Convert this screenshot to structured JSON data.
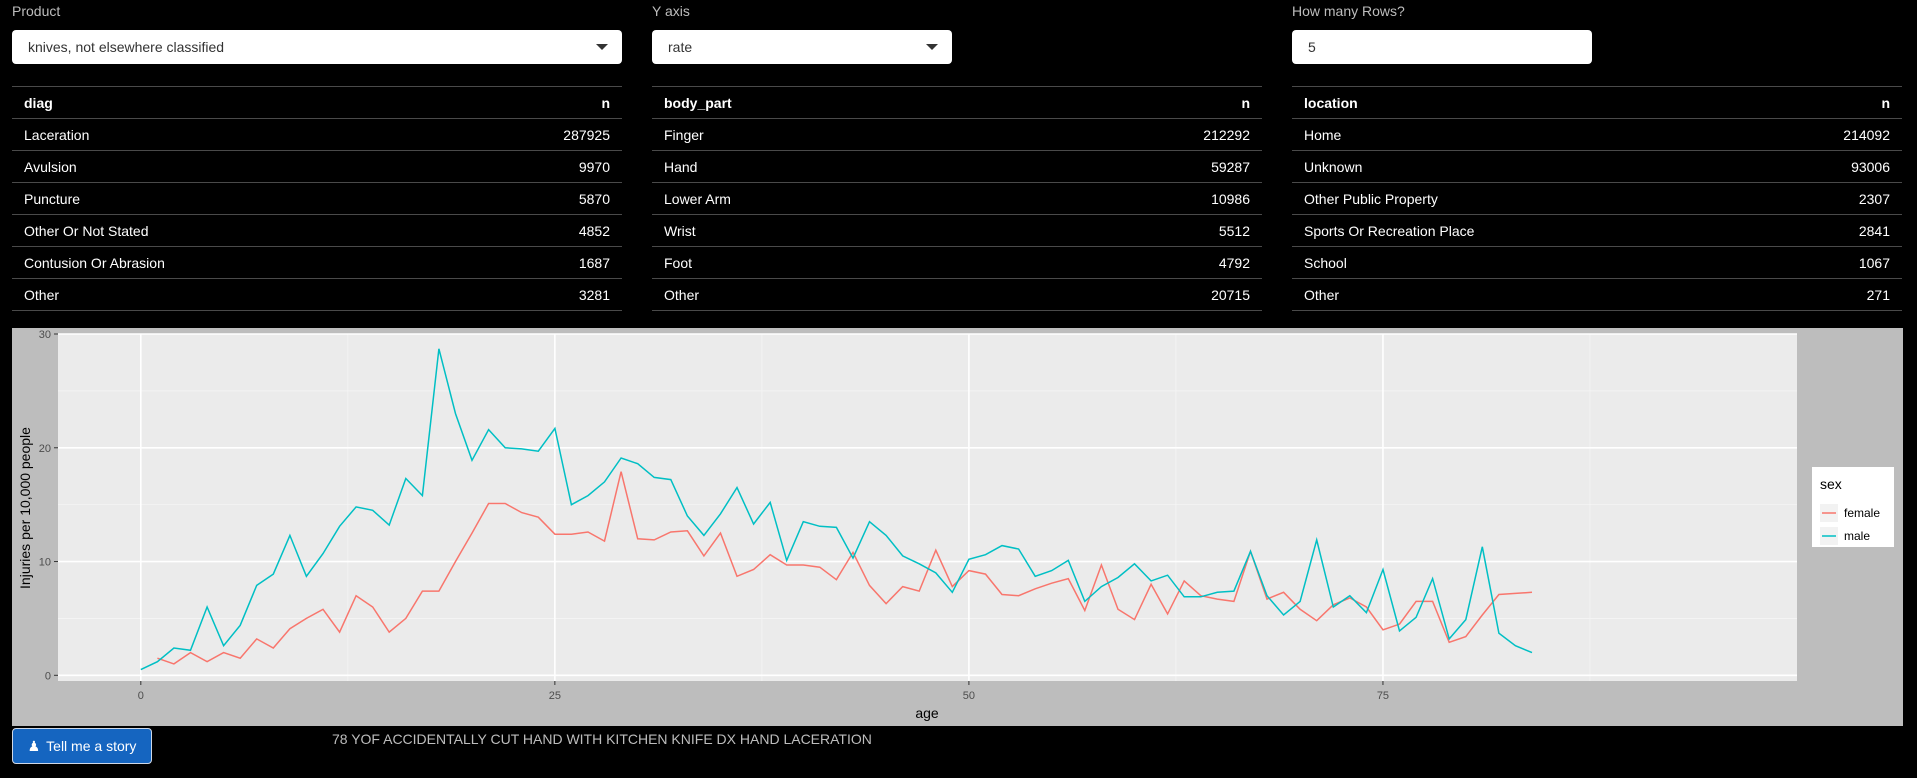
{
  "controls": {
    "product": {
      "label": "Product",
      "value": "knives, not elsewhere classified"
    },
    "yaxis": {
      "label": "Y axis",
      "value": "rate"
    },
    "rows": {
      "label": "How many Rows?",
      "value": "5"
    }
  },
  "tables": {
    "diag": {
      "headers": [
        "diag",
        "n"
      ],
      "rows": [
        [
          "Laceration",
          "287925"
        ],
        [
          "Avulsion",
          "9970"
        ],
        [
          "Puncture",
          "5870"
        ],
        [
          "Other Or Not Stated",
          "4852"
        ],
        [
          "Contusion Or Abrasion",
          "1687"
        ],
        [
          "Other",
          "3281"
        ]
      ]
    },
    "body_part": {
      "headers": [
        "body_part",
        "n"
      ],
      "rows": [
        [
          "Finger",
          "212292"
        ],
        [
          "Hand",
          "59287"
        ],
        [
          "Lower Arm",
          "10986"
        ],
        [
          "Wrist",
          "5512"
        ],
        [
          "Foot",
          "4792"
        ],
        [
          "Other",
          "20715"
        ]
      ]
    },
    "location": {
      "headers": [
        "location",
        "n"
      ],
      "rows": [
        [
          "Home",
          "214092"
        ],
        [
          "Unknown",
          "93006"
        ],
        [
          "Other Public Property",
          "2307"
        ],
        [
          "Sports Or Recreation Place",
          "2841"
        ],
        [
          "School",
          "1067"
        ],
        [
          "Other",
          "271"
        ]
      ]
    }
  },
  "story": {
    "button_label": "Tell me a story",
    "icon": "user-secret-icon",
    "text": "78 YOF ACCIDENTALLY CUT HAND WITH KITCHEN KNIFE DX HAND LACERATION"
  },
  "chart_data": {
    "type": "line",
    "xlabel": "age",
    "ylabel": "Injuries per 10,000 people",
    "xlim": [
      -5,
      100
    ],
    "ylim": [
      -0.5,
      30
    ],
    "x_ticks": [
      0,
      25,
      50,
      75
    ],
    "y_ticks": [
      0,
      10,
      20,
      30
    ],
    "grid": true,
    "legend_title": "sex",
    "legend_position": "right",
    "series": [
      {
        "name": "female",
        "color": "#F8766D",
        "x": [
          1,
          2,
          3,
          4,
          5,
          6,
          7,
          8,
          9,
          10,
          11,
          12,
          13,
          14,
          15,
          16,
          17,
          18,
          19,
          20,
          21,
          22,
          23,
          24,
          25,
          26,
          27,
          28,
          29,
          30,
          31,
          32,
          33,
          34,
          35,
          36,
          37,
          38,
          39,
          40,
          41,
          42,
          43,
          44,
          45,
          46,
          47,
          48,
          49,
          50,
          51,
          52,
          53,
          54,
          55,
          56,
          57,
          58,
          59,
          60,
          61,
          62,
          63,
          64,
          65,
          66,
          67,
          68,
          69,
          70,
          71,
          72,
          73,
          74,
          75,
          76,
          77,
          78,
          79,
          80,
          81,
          82,
          83,
          84
        ],
        "values": [
          1.5,
          1.0,
          2.0,
          1.2,
          2.0,
          1.5,
          3.2,
          2.4,
          4.1,
          5.0,
          5.8,
          3.8,
          7.0,
          6.0,
          3.8,
          5.0,
          7.4,
          7.4,
          10.0,
          12.5,
          15.1,
          15.1,
          14.3,
          13.9,
          12.4,
          12.4,
          12.6,
          11.8,
          17.9,
          12.0,
          11.9,
          12.6,
          12.7,
          10.5,
          12.5,
          8.7,
          9.3,
          10.6,
          9.7,
          9.7,
          9.5,
          8.4,
          10.8,
          7.9,
          6.3,
          7.8,
          7.4,
          11.0,
          7.8,
          9.2,
          8.9,
          7.1,
          7.0,
          7.6,
          8.1,
          8.5,
          5.7,
          9.7,
          5.8,
          4.9,
          8.0,
          5.4,
          8.3,
          7.0,
          6.7,
          6.5,
          10.9,
          6.7,
          7.3,
          5.8,
          4.8,
          6.2,
          6.8,
          6.0,
          4.0,
          4.5,
          6.5,
          6.5,
          2.9,
          3.4,
          5.3,
          7.1,
          7.2,
          7.3
        ]
      },
      {
        "name": "male",
        "color": "#00BFC4",
        "x": [
          0,
          1,
          2,
          3,
          4,
          5,
          6,
          7,
          8,
          9,
          10,
          11,
          12,
          13,
          14,
          15,
          16,
          17,
          18,
          19,
          20,
          21,
          22,
          23,
          24,
          25,
          26,
          27,
          28,
          29,
          30,
          31,
          32,
          33,
          34,
          35,
          36,
          37,
          38,
          39,
          40,
          41,
          42,
          43,
          44,
          45,
          46,
          47,
          48,
          49,
          50,
          51,
          52,
          53,
          54,
          55,
          56,
          57,
          58,
          59,
          60,
          61,
          62,
          63,
          64,
          65,
          66,
          67,
          68,
          69,
          70,
          71,
          72,
          73,
          74,
          75,
          76,
          77,
          78,
          79,
          80,
          81,
          82,
          83,
          84
        ],
        "values": [
          0.5,
          1.2,
          2.4,
          2.2,
          6.0,
          2.6,
          4.4,
          7.9,
          8.9,
          12.3,
          8.7,
          10.7,
          13.1,
          14.8,
          14.5,
          13.2,
          17.3,
          15.8,
          28.7,
          23.0,
          18.9,
          21.6,
          20.0,
          19.9,
          19.7,
          21.7,
          15.0,
          15.8,
          17.0,
          19.1,
          18.6,
          17.4,
          17.2,
          14.0,
          12.3,
          14.2,
          16.5,
          13.3,
          15.2,
          10.1,
          13.5,
          13.1,
          13.0,
          10.3,
          13.5,
          12.3,
          10.5,
          9.8,
          9.0,
          7.3,
          10.2,
          10.6,
          11.4,
          11.1,
          8.7,
          9.2,
          10.1,
          6.5,
          7.8,
          8.6,
          9.8,
          8.3,
          8.8,
          6.9,
          6.9,
          7.3,
          7.4,
          10.9,
          7.0,
          5.3,
          6.5,
          11.9,
          6.0,
          7.0,
          5.5,
          9.3,
          3.9,
          5.1,
          8.5,
          3.2,
          4.9,
          11.3,
          3.7,
          2.6,
          2.0
        ]
      }
    ]
  }
}
